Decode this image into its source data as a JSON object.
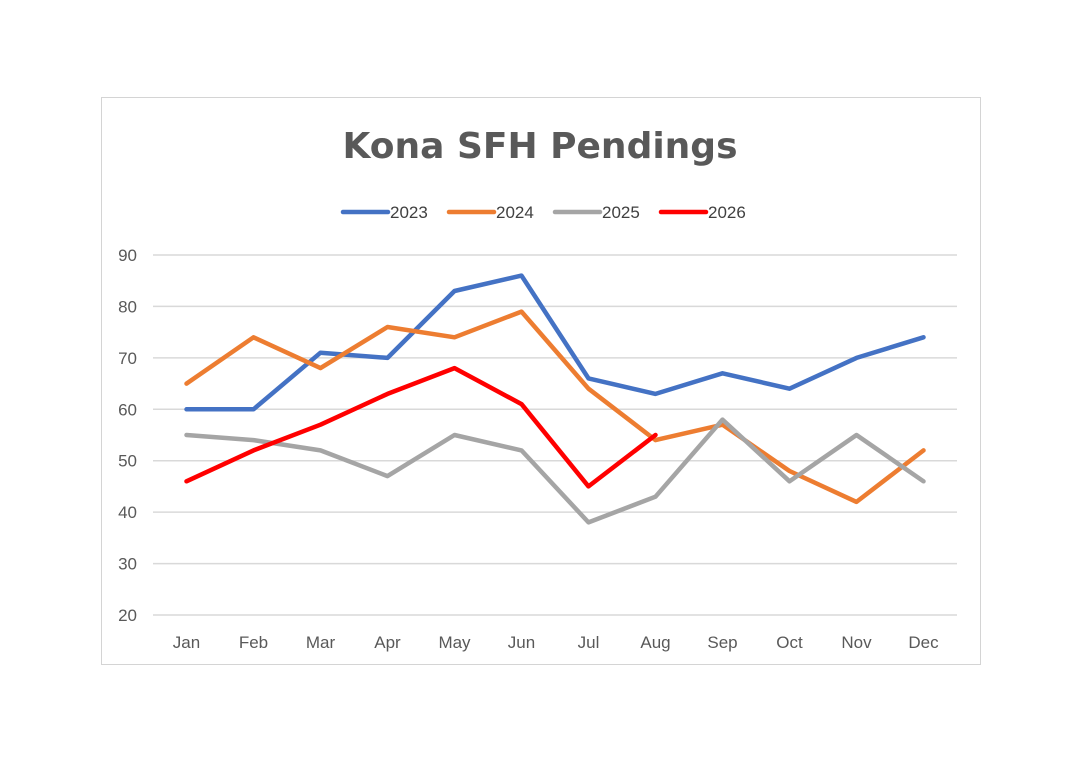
{
  "chart_data": {
    "type": "line",
    "title": "Kona SFH Pendings",
    "xlabel": "",
    "ylabel": "",
    "ylim": [
      20,
      90
    ],
    "yticks": [
      20,
      30,
      40,
      50,
      60,
      70,
      80,
      90
    ],
    "grid": true,
    "legend_position": "top",
    "categories": [
      "Jan",
      "Feb",
      "Mar",
      "Apr",
      "May",
      "Jun",
      "Jul",
      "Aug",
      "Sep",
      "Oct",
      "Nov",
      "Dec"
    ],
    "series": [
      {
        "name": "2023",
        "color": "#4472C4",
        "values": [
          60,
          60,
          71,
          70,
          83,
          86,
          66,
          63,
          67,
          64,
          70,
          74
        ]
      },
      {
        "name": "2024",
        "color": "#ED7D31",
        "values": [
          65,
          74,
          68,
          76,
          74,
          79,
          64,
          54,
          57,
          48,
          42,
          52
        ]
      },
      {
        "name": "2025",
        "color": "#A5A5A5",
        "values": [
          55,
          54,
          52,
          47,
          55,
          52,
          38,
          43,
          58,
          46,
          55,
          46
        ]
      },
      {
        "name": "2026",
        "color": "#FF0000",
        "values": [
          46,
          52,
          57,
          63,
          68,
          61,
          45,
          55,
          null,
          null,
          null,
          null
        ]
      }
    ]
  }
}
